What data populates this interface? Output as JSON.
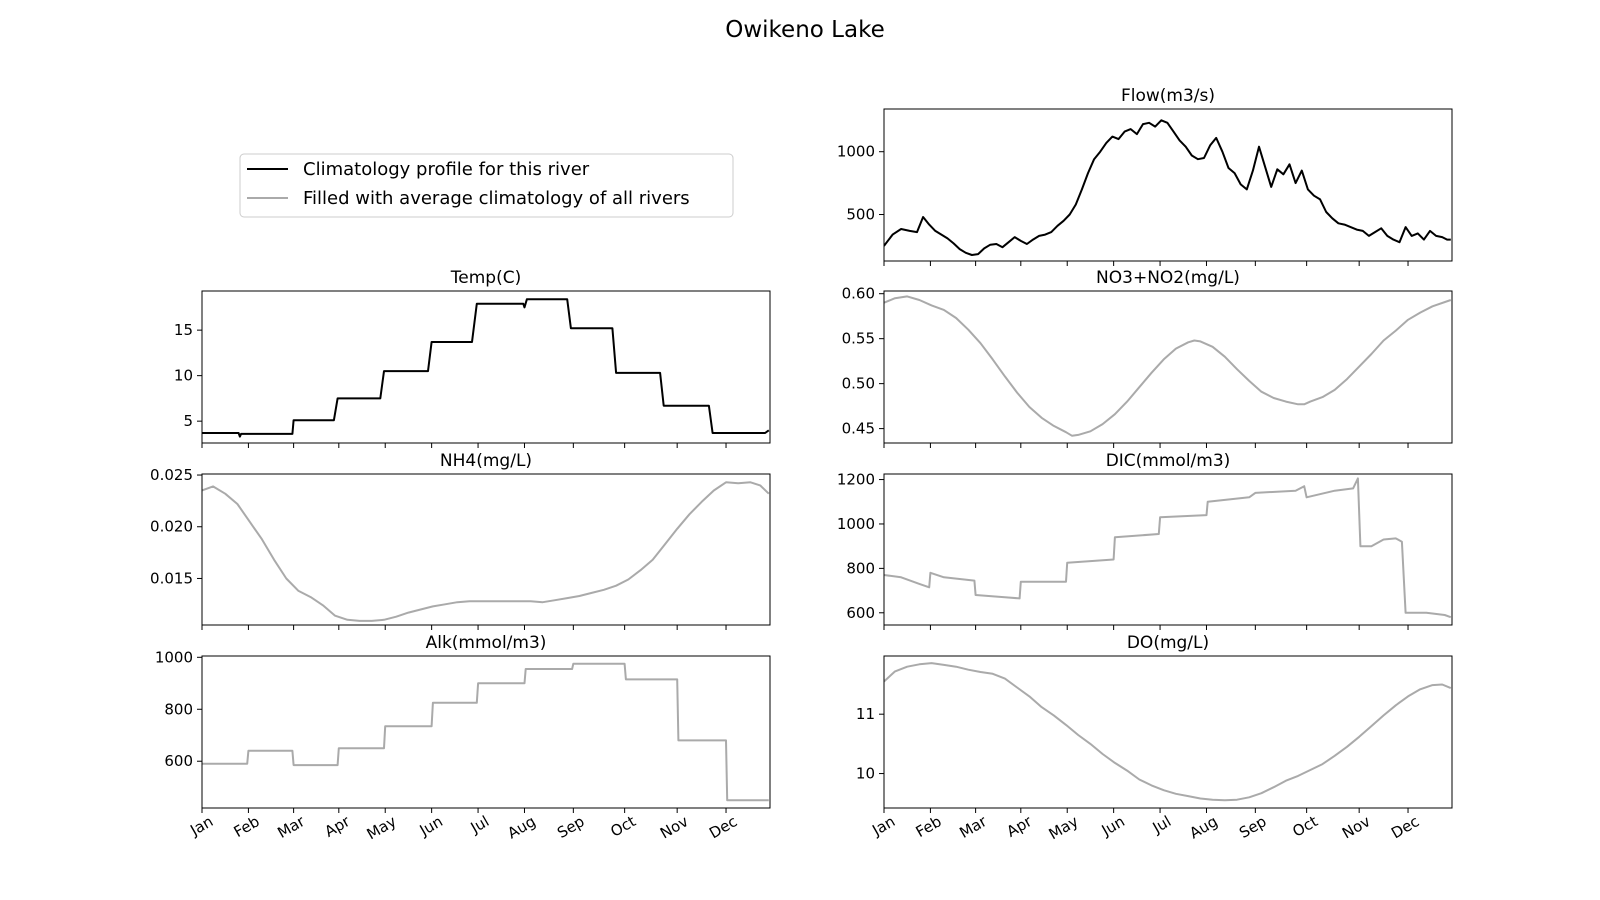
{
  "figure": {
    "title": "Owikeno Lake"
  },
  "legend": {
    "placement": "upper-left of figure",
    "entries": [
      {
        "label": "Climatology profile for this river",
        "color": "#000000"
      },
      {
        "label": "Filled with average climatology of all rivers",
        "color": "#aaaaaa"
      }
    ]
  },
  "chart_data": [
    {
      "type": "line",
      "title": "Flow(m3/s)",
      "series_color": "#000000",
      "ylim": [
        130,
        1340
      ],
      "yticks": [
        500,
        1000
      ],
      "ytick_labels": [
        "500",
        "1000"
      ],
      "show_xticklabels": false,
      "points": [
        [
          1,
          250
        ],
        [
          8,
          340
        ],
        [
          15,
          385
        ],
        [
          22,
          370
        ],
        [
          28,
          360
        ],
        [
          33,
          480
        ],
        [
          38,
          420
        ],
        [
          43,
          370
        ],
        [
          48,
          340
        ],
        [
          53,
          310
        ],
        [
          58,
          270
        ],
        [
          63,
          225
        ],
        [
          68,
          195
        ],
        [
          73,
          178
        ],
        [
          78,
          185
        ],
        [
          83,
          230
        ],
        [
          88,
          260
        ],
        [
          93,
          265
        ],
        [
          98,
          240
        ],
        [
          103,
          280
        ],
        [
          108,
          320
        ],
        [
          113,
          290
        ],
        [
          118,
          265
        ],
        [
          123,
          300
        ],
        [
          128,
          330
        ],
        [
          133,
          340
        ],
        [
          138,
          360
        ],
        [
          143,
          410
        ],
        [
          148,
          450
        ],
        [
          153,
          500
        ],
        [
          158,
          580
        ],
        [
          163,
          700
        ],
        [
          168,
          830
        ],
        [
          173,
          940
        ],
        [
          178,
          1000
        ],
        [
          183,
          1070
        ],
        [
          188,
          1120
        ],
        [
          193,
          1100
        ],
        [
          198,
          1160
        ],
        [
          203,
          1180
        ],
        [
          208,
          1140
        ],
        [
          213,
          1220
        ],
        [
          218,
          1230
        ],
        [
          223,
          1200
        ],
        [
          228,
          1250
        ],
        [
          233,
          1230
        ],
        [
          238,
          1160
        ],
        [
          243,
          1090
        ],
        [
          248,
          1040
        ],
        [
          253,
          970
        ],
        [
          258,
          940
        ],
        [
          263,
          950
        ],
        [
          268,
          1050
        ],
        [
          273,
          1110
        ],
        [
          278,
          1000
        ],
        [
          283,
          870
        ],
        [
          288,
          830
        ],
        [
          293,
          740
        ],
        [
          298,
          700
        ],
        [
          303,
          850
        ],
        [
          308,
          1040
        ],
        [
          313,
          880
        ],
        [
          318,
          720
        ],
        [
          323,
          860
        ],
        [
          328,
          820
        ],
        [
          333,
          900
        ],
        [
          338,
          750
        ],
        [
          343,
          850
        ],
        [
          348,
          700
        ],
        [
          353,
          650
        ],
        [
          358,
          620
        ],
        [
          363,
          520
        ],
        [
          368,
          470
        ],
        [
          373,
          430
        ],
        [
          378,
          420
        ],
        [
          383,
          400
        ],
        [
          388,
          380
        ],
        [
          393,
          370
        ],
        [
          398,
          330
        ],
        [
          403,
          360
        ],
        [
          408,
          390
        ],
        [
          413,
          330
        ],
        [
          418,
          300
        ],
        [
          423,
          280
        ],
        [
          428,
          400
        ],
        [
          433,
          330
        ],
        [
          438,
          350
        ],
        [
          443,
          300
        ],
        [
          448,
          370
        ],
        [
          453,
          330
        ],
        [
          458,
          320
        ],
        [
          462,
          300
        ],
        [
          465,
          300
        ]
      ]
    },
    {
      "type": "line",
      "title": "Temp(C)",
      "series_color": "#000000",
      "ylim": [
        2.6,
        19.3
      ],
      "yticks": [
        5,
        10,
        15
      ],
      "ytick_labels": [
        "5",
        "10",
        "15"
      ],
      "show_xticklabels": false,
      "points": [
        [
          1,
          3.7
        ],
        [
          31,
          3.7
        ],
        [
          32,
          3.3
        ],
        [
          33,
          3.6
        ],
        [
          75,
          3.6
        ],
        [
          76,
          5.1
        ],
        [
          109,
          5.1
        ],
        [
          112,
          7.5
        ],
        [
          147,
          7.5
        ],
        [
          150,
          10.5
        ],
        [
          186,
          10.5
        ],
        [
          189,
          13.7
        ],
        [
          222,
          13.7
        ],
        [
          226,
          17.9
        ],
        [
          264,
          17.9
        ],
        [
          265,
          17.5
        ],
        [
          267,
          18.4
        ],
        [
          300,
          18.4
        ],
        [
          303,
          15.2
        ],
        [
          337,
          15.2
        ],
        [
          340,
          10.3
        ],
        [
          376,
          10.3
        ],
        [
          379,
          6.7
        ],
        [
          416,
          6.7
        ],
        [
          419,
          3.7
        ],
        [
          462,
          3.7
        ],
        [
          465,
          4.0
        ]
      ]
    },
    {
      "type": "line",
      "title": "NO3+NO2(mg/L)",
      "series_color": "#aaaaaa",
      "ylim": [
        0.434,
        0.603
      ],
      "yticks": [
        0.45,
        0.5,
        0.55,
        0.6
      ],
      "ytick_labels": [
        "0.45",
        "0.50",
        "0.55",
        "0.60"
      ],
      "show_xticklabels": false,
      "points": [
        [
          1,
          0.59
        ],
        [
          10,
          0.595
        ],
        [
          20,
          0.597
        ],
        [
          30,
          0.593
        ],
        [
          40,
          0.587
        ],
        [
          50,
          0.582
        ],
        [
          60,
          0.573
        ],
        [
          70,
          0.56
        ],
        [
          80,
          0.545
        ],
        [
          90,
          0.527
        ],
        [
          100,
          0.508
        ],
        [
          110,
          0.49
        ],
        [
          120,
          0.474
        ],
        [
          130,
          0.462
        ],
        [
          140,
          0.453
        ],
        [
          150,
          0.446
        ],
        [
          155,
          0.442
        ],
        [
          160,
          0.443
        ],
        [
          170,
          0.447
        ],
        [
          180,
          0.455
        ],
        [
          190,
          0.466
        ],
        [
          200,
          0.48
        ],
        [
          210,
          0.496
        ],
        [
          220,
          0.512
        ],
        [
          230,
          0.527
        ],
        [
          240,
          0.539
        ],
        [
          250,
          0.546
        ],
        [
          255,
          0.548
        ],
        [
          260,
          0.547
        ],
        [
          270,
          0.541
        ],
        [
          280,
          0.53
        ],
        [
          290,
          0.516
        ],
        [
          300,
          0.503
        ],
        [
          310,
          0.491
        ],
        [
          320,
          0.484
        ],
        [
          330,
          0.48
        ],
        [
          340,
          0.477
        ],
        [
          345,
          0.477
        ],
        [
          350,
          0.48
        ],
        [
          360,
          0.485
        ],
        [
          370,
          0.493
        ],
        [
          380,
          0.505
        ],
        [
          390,
          0.519
        ],
        [
          400,
          0.533
        ],
        [
          410,
          0.548
        ],
        [
          420,
          0.559
        ],
        [
          430,
          0.571
        ],
        [
          440,
          0.579
        ],
        [
          450,
          0.586
        ],
        [
          465,
          0.593
        ]
      ]
    },
    {
      "type": "line",
      "title": "NH4(mg/L)",
      "series_color": "#aaaaaa",
      "ylim": [
        0.0105,
        0.0251
      ],
      "yticks": [
        0.015,
        0.02,
        0.025
      ],
      "ytick_labels": [
        "0.015",
        "0.020",
        "0.025"
      ],
      "show_xticklabels": false,
      "points": [
        [
          1,
          0.0235
        ],
        [
          10,
          0.0239
        ],
        [
          20,
          0.0232
        ],
        [
          30,
          0.0222
        ],
        [
          40,
          0.0205
        ],
        [
          50,
          0.0188
        ],
        [
          60,
          0.0168
        ],
        [
          70,
          0.015
        ],
        [
          80,
          0.0138
        ],
        [
          90,
          0.0132
        ],
        [
          100,
          0.0124
        ],
        [
          110,
          0.0114
        ],
        [
          120,
          0.011
        ],
        [
          130,
          0.0109
        ],
        [
          140,
          0.0109
        ],
        [
          150,
          0.011
        ],
        [
          160,
          0.0113
        ],
        [
          170,
          0.0117
        ],
        [
          180,
          0.012
        ],
        [
          190,
          0.0123
        ],
        [
          200,
          0.0125
        ],
        [
          210,
          0.0127
        ],
        [
          220,
          0.0128
        ],
        [
          230,
          0.0128
        ],
        [
          240,
          0.0128
        ],
        [
          250,
          0.0128
        ],
        [
          260,
          0.0128
        ],
        [
          270,
          0.0128
        ],
        [
          280,
          0.0127
        ],
        [
          290,
          0.0129
        ],
        [
          300,
          0.0131
        ],
        [
          310,
          0.0133
        ],
        [
          320,
          0.0136
        ],
        [
          330,
          0.0139
        ],
        [
          340,
          0.0143
        ],
        [
          350,
          0.0149
        ],
        [
          360,
          0.0158
        ],
        [
          370,
          0.0168
        ],
        [
          380,
          0.0183
        ],
        [
          390,
          0.0198
        ],
        [
          400,
          0.0212
        ],
        [
          410,
          0.0224
        ],
        [
          420,
          0.0235
        ],
        [
          430,
          0.0243
        ],
        [
          440,
          0.0242
        ],
        [
          450,
          0.0243
        ],
        [
          458,
          0.024
        ],
        [
          465,
          0.0232
        ]
      ]
    },
    {
      "type": "line",
      "title": "DIC(mmol/m3)",
      "series_color": "#aaaaaa",
      "ylim": [
        545,
        1225
      ],
      "yticks": [
        600,
        800,
        1000,
        1200
      ],
      "ytick_labels": [
        "600",
        "800",
        "1000",
        "1200"
      ],
      "show_xticklabels": false,
      "points": [
        [
          1,
          770
        ],
        [
          15,
          760
        ],
        [
          30,
          730
        ],
        [
          38,
          715
        ],
        [
          39,
          780
        ],
        [
          50,
          760
        ],
        [
          75,
          745
        ],
        [
          76,
          680
        ],
        [
          100,
          670
        ],
        [
          112,
          665
        ],
        [
          113,
          740
        ],
        [
          150,
          740
        ],
        [
          151,
          825
        ],
        [
          189,
          840
        ],
        [
          190,
          940
        ],
        [
          226,
          955
        ],
        [
          227,
          1030
        ],
        [
          265,
          1040
        ],
        [
          266,
          1100
        ],
        [
          300,
          1120
        ],
        [
          305,
          1140
        ],
        [
          338,
          1150
        ],
        [
          345,
          1170
        ],
        [
          347,
          1120
        ],
        [
          370,
          1150
        ],
        [
          385,
          1160
        ],
        [
          389,
          1205
        ],
        [
          391,
          900
        ],
        [
          400,
          900
        ],
        [
          410,
          930
        ],
        [
          420,
          935
        ],
        [
          425,
          920
        ],
        [
          428,
          600
        ],
        [
          445,
          600
        ],
        [
          460,
          590
        ],
        [
          465,
          580
        ]
      ]
    },
    {
      "type": "line",
      "title": "Alk(mmol/m3)",
      "series_color": "#aaaaaa",
      "ylim": [
        420,
        1005
      ],
      "yticks": [
        600,
        800,
        1000
      ],
      "ytick_labels": [
        "600",
        "800",
        "1000"
      ],
      "show_xticklabels": true,
      "points": [
        [
          1,
          590
        ],
        [
          38,
          590
        ],
        [
          39,
          640
        ],
        [
          75,
          640
        ],
        [
          76,
          585
        ],
        [
          112,
          585
        ],
        [
          113,
          650
        ],
        [
          150,
          650
        ],
        [
          151,
          735
        ],
        [
          189,
          735
        ],
        [
          190,
          825
        ],
        [
          226,
          825
        ],
        [
          227,
          900
        ],
        [
          265,
          900
        ],
        [
          266,
          955
        ],
        [
          304,
          955
        ],
        [
          305,
          975
        ],
        [
          347,
          975
        ],
        [
          348,
          915
        ],
        [
          390,
          915
        ],
        [
          391,
          680
        ],
        [
          430,
          680
        ],
        [
          431,
          450
        ],
        [
          465,
          450
        ]
      ]
    },
    {
      "type": "line",
      "title": "DO(mg/L)",
      "series_color": "#aaaaaa",
      "ylim": [
        9.42,
        11.98
      ],
      "yticks": [
        10,
        11
      ],
      "ytick_labels": [
        "10",
        "11"
      ],
      "show_xticklabels": true,
      "points": [
        [
          1,
          11.55
        ],
        [
          10,
          11.72
        ],
        [
          20,
          11.8
        ],
        [
          30,
          11.84
        ],
        [
          40,
          11.86
        ],
        [
          50,
          11.83
        ],
        [
          60,
          11.8
        ],
        [
          70,
          11.75
        ],
        [
          80,
          11.71
        ],
        [
          90,
          11.68
        ],
        [
          100,
          11.6
        ],
        [
          110,
          11.45
        ],
        [
          120,
          11.3
        ],
        [
          130,
          11.12
        ],
        [
          140,
          10.98
        ],
        [
          150,
          10.82
        ],
        [
          160,
          10.65
        ],
        [
          170,
          10.5
        ],
        [
          180,
          10.33
        ],
        [
          190,
          10.18
        ],
        [
          200,
          10.05
        ],
        [
          210,
          9.9
        ],
        [
          220,
          9.8
        ],
        [
          230,
          9.72
        ],
        [
          240,
          9.66
        ],
        [
          250,
          9.62
        ],
        [
          260,
          9.58
        ],
        [
          270,
          9.56
        ],
        [
          280,
          9.55
        ],
        [
          290,
          9.56
        ],
        [
          300,
          9.6
        ],
        [
          310,
          9.67
        ],
        [
          320,
          9.77
        ],
        [
          330,
          9.88
        ],
        [
          340,
          9.96
        ],
        [
          350,
          10.06
        ],
        [
          360,
          10.16
        ],
        [
          370,
          10.3
        ],
        [
          380,
          10.45
        ],
        [
          390,
          10.62
        ],
        [
          400,
          10.8
        ],
        [
          410,
          10.98
        ],
        [
          420,
          11.15
        ],
        [
          430,
          11.3
        ],
        [
          440,
          11.42
        ],
        [
          450,
          11.49
        ],
        [
          458,
          11.5
        ],
        [
          465,
          11.44
        ]
      ]
    }
  ],
  "xaxis": {
    "range": [
      1,
      466
    ],
    "month_ticks": [
      1,
      39,
      76,
      113,
      151,
      189,
      227,
      265,
      305,
      347,
      390,
      430
    ],
    "month_labels": [
      "Jan",
      "Feb",
      "Mar",
      "Apr",
      "May",
      "Jun",
      "Jul",
      "Aug",
      "Sep",
      "Oct",
      "Nov",
      "Dec"
    ]
  }
}
